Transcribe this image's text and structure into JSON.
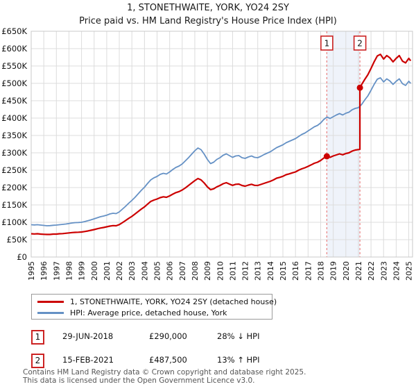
{
  "header": {
    "title": "1, STONETHWAITE, YORK, YO24 2SY",
    "subtitle": "Price paid vs. HM Land Registry's House Price Index (HPI)"
  },
  "legend": [
    {
      "label": "1, STONETHWAITE, YORK, YO24 2SY (detached house)",
      "color": "#cc0000"
    },
    {
      "label": "HPI: Average price, detached house, York",
      "color": "#6591c5"
    }
  ],
  "sales": [
    {
      "num": "1",
      "date": "29-JUN-2018",
      "price_label": "£290,000",
      "hpi_diff": "28% ↓ HPI",
      "x": 2018.49,
      "price": 290000
    },
    {
      "num": "2",
      "date": "15-FEB-2021",
      "price_label": "£487,500",
      "hpi_diff": "13% ↑ HPI",
      "x": 2021.12,
      "price": 487500
    }
  ],
  "footer": {
    "line1": "Contains HM Land Registry data © Crown copyright and database right 2025.",
    "line2": "This data is licensed under the Open Government Licence v3.0."
  },
  "chart_data": {
    "type": "line",
    "title": "1, STONETHWAITE, YORK, YO24 2SY",
    "subtitle": "Price paid vs. HM Land Registry's House Price Index (HPI)",
    "x_range": [
      1995,
      2025.3
    ],
    "y_range": [
      0,
      650000
    ],
    "x_ticks": [
      1995,
      1996,
      1997,
      1998,
      1999,
      2000,
      2001,
      2002,
      2003,
      2004,
      2005,
      2006,
      2007,
      2008,
      2009,
      2010,
      2011,
      2012,
      2013,
      2014,
      2015,
      2016,
      2017,
      2018,
      2019,
      2020,
      2021,
      2022,
      2023,
      2024,
      2025
    ],
    "y_ticks": [
      {
        "v": 0,
        "label": "£0"
      },
      {
        "v": 50000,
        "label": "£50K"
      },
      {
        "v": 100000,
        "label": "£100K"
      },
      {
        "v": 150000,
        "label": "£150K"
      },
      {
        "v": 200000,
        "label": "£200K"
      },
      {
        "v": 250000,
        "label": "£250K"
      },
      {
        "v": 300000,
        "label": "£300K"
      },
      {
        "v": 350000,
        "label": "£350K"
      },
      {
        "v": 400000,
        "label": "£400K"
      },
      {
        "v": 450000,
        "label": "£450K"
      },
      {
        "v": 500000,
        "label": "£500K"
      },
      {
        "v": 550000,
        "label": "£550K"
      },
      {
        "v": 600000,
        "label": "£600K"
      },
      {
        "v": 650000,
        "label": "£650K"
      }
    ],
    "grid": true,
    "legend_position": "bottom",
    "shaded_span": [
      2018.49,
      2021.12
    ],
    "colors": {
      "red": "#cc0000",
      "blue": "#6591c5",
      "grid": "#dcdcdc",
      "border": "#c8c8c8",
      "band": "#dbe5f4",
      "dash": "#e98080",
      "marker_border": "#cc2222",
      "tick_text": "#111111"
    },
    "series": [
      {
        "name": "1, STONETHWAITE, YORK, YO24 2SY (detached house)",
        "color": "#cc0000",
        "width": 2.2,
        "points": [
          [
            1995,
            67000
          ],
          [
            1995.25,
            66500
          ],
          [
            1995.5,
            67000
          ],
          [
            1995.75,
            66000
          ],
          [
            1996,
            65500
          ],
          [
            1996.25,
            65000
          ],
          [
            1996.5,
            65000
          ],
          [
            1996.75,
            66000
          ],
          [
            1997,
            66000
          ],
          [
            1997.25,
            67000
          ],
          [
            1997.5,
            67500
          ],
          [
            1997.75,
            68500
          ],
          [
            1998,
            69500
          ],
          [
            1998.25,
            70500
          ],
          [
            1998.5,
            71000
          ],
          [
            1998.75,
            71500
          ],
          [
            1999,
            72000
          ],
          [
            1999.25,
            73500
          ],
          [
            1999.5,
            75000
          ],
          [
            1999.75,
            77000
          ],
          [
            2000,
            79000
          ],
          [
            2000.25,
            81500
          ],
          [
            2000.5,
            83500
          ],
          [
            2000.75,
            85000
          ],
          [
            2001,
            87000
          ],
          [
            2001.25,
            89000
          ],
          [
            2001.5,
            90500
          ],
          [
            2001.75,
            90000
          ],
          [
            2002,
            93500
          ],
          [
            2002.25,
            99000
          ],
          [
            2002.5,
            105000
          ],
          [
            2002.75,
            111500
          ],
          [
            2003,
            117000
          ],
          [
            2003.25,
            124000
          ],
          [
            2003.5,
            131000
          ],
          [
            2003.75,
            138000
          ],
          [
            2004,
            144500
          ],
          [
            2004.25,
            152500
          ],
          [
            2004.5,
            160000
          ],
          [
            2004.75,
            164000
          ],
          [
            2005,
            167000
          ],
          [
            2005.25,
            171000
          ],
          [
            2005.5,
            173500
          ],
          [
            2005.75,
            172000
          ],
          [
            2006,
            176000
          ],
          [
            2006.25,
            181000
          ],
          [
            2006.5,
            185500
          ],
          [
            2006.75,
            188500
          ],
          [
            2007,
            193000
          ],
          [
            2007.25,
            199000
          ],
          [
            2007.5,
            206000
          ],
          [
            2007.75,
            213000
          ],
          [
            2008,
            220000
          ],
          [
            2008.25,
            226000
          ],
          [
            2008.5,
            222000
          ],
          [
            2008.75,
            213000
          ],
          [
            2009,
            202000
          ],
          [
            2009.25,
            194000
          ],
          [
            2009.5,
            196500
          ],
          [
            2009.75,
            202000
          ],
          [
            2010,
            206000
          ],
          [
            2010.25,
            211000
          ],
          [
            2010.5,
            214000
          ],
          [
            2010.75,
            210000
          ],
          [
            2011,
            206500
          ],
          [
            2011.25,
            209500
          ],
          [
            2011.5,
            210000
          ],
          [
            2011.75,
            206000
          ],
          [
            2012,
            204000
          ],
          [
            2012.25,
            207000
          ],
          [
            2012.5,
            209500
          ],
          [
            2012.75,
            206500
          ],
          [
            2013,
            206000
          ],
          [
            2013.25,
            209000
          ],
          [
            2013.5,
            212000
          ],
          [
            2013.75,
            215000
          ],
          [
            2014,
            218000
          ],
          [
            2014.25,
            222000
          ],
          [
            2014.5,
            227000
          ],
          [
            2014.75,
            229500
          ],
          [
            2015,
            232500
          ],
          [
            2015.25,
            237000
          ],
          [
            2015.5,
            239500
          ],
          [
            2015.75,
            242500
          ],
          [
            2016,
            245000
          ],
          [
            2016.25,
            250000
          ],
          [
            2016.5,
            254000
          ],
          [
            2016.75,
            257000
          ],
          [
            2017,
            261000
          ],
          [
            2017.25,
            265500
          ],
          [
            2017.5,
            270000
          ],
          [
            2017.75,
            273000
          ],
          [
            2018,
            278000
          ],
          [
            2018.25,
            285000
          ],
          [
            2018.49,
            290000
          ],
          [
            2018.75,
            287000
          ],
          [
            2019,
            291000
          ],
          [
            2019.25,
            294000
          ],
          [
            2019.5,
            297000
          ],
          [
            2019.75,
            294500
          ],
          [
            2020,
            298000
          ],
          [
            2020.25,
            300000
          ],
          [
            2020.5,
            305000
          ],
          [
            2020.75,
            308000
          ],
          [
            2021,
            309500
          ],
          [
            2021.12,
            310000
          ],
          [
            2021.12,
            487500
          ],
          [
            2021.25,
            496500
          ],
          [
            2021.5,
            511000
          ],
          [
            2021.75,
            525000
          ],
          [
            2022,
            543000
          ],
          [
            2022.25,
            562000
          ],
          [
            2022.5,
            579000
          ],
          [
            2022.75,
            583500
          ],
          [
            2023,
            570000
          ],
          [
            2023.25,
            580000
          ],
          [
            2023.5,
            573500
          ],
          [
            2023.75,
            562000
          ],
          [
            2024,
            572000
          ],
          [
            2024.25,
            580000
          ],
          [
            2024.5,
            564000
          ],
          [
            2024.75,
            559000
          ],
          [
            2025,
            572000
          ],
          [
            2025.15,
            565000
          ]
        ]
      },
      {
        "name": "HPI: Average price, detached house, York",
        "color": "#6591c5",
        "width": 1.8,
        "points": [
          [
            1995,
            93000
          ],
          [
            1995.25,
            92500
          ],
          [
            1995.5,
            93000
          ],
          [
            1995.75,
            92000
          ],
          [
            1996,
            91000
          ],
          [
            1996.25,
            90000
          ],
          [
            1996.5,
            90500
          ],
          [
            1996.75,
            91500
          ],
          [
            1997,
            92000
          ],
          [
            1997.25,
            93000
          ],
          [
            1997.5,
            94000
          ],
          [
            1997.75,
            95000
          ],
          [
            1998,
            96500
          ],
          [
            1998.25,
            98000
          ],
          [
            1998.5,
            99000
          ],
          [
            1998.75,
            99500
          ],
          [
            1999,
            100000
          ],
          [
            1999.25,
            102000
          ],
          [
            1999.5,
            104500
          ],
          [
            1999.75,
            107000
          ],
          [
            2000,
            110000
          ],
          [
            2000.25,
            113000
          ],
          [
            2000.5,
            116000
          ],
          [
            2000.75,
            118000
          ],
          [
            2001,
            120500
          ],
          [
            2001.25,
            124000
          ],
          [
            2001.5,
            126000
          ],
          [
            2001.75,
            125000
          ],
          [
            2002,
            130000
          ],
          [
            2002.25,
            138000
          ],
          [
            2002.5,
            146000
          ],
          [
            2002.75,
            155000
          ],
          [
            2003,
            163000
          ],
          [
            2003.25,
            172000
          ],
          [
            2003.5,
            182000
          ],
          [
            2003.75,
            192000
          ],
          [
            2004,
            201000
          ],
          [
            2004.25,
            212000
          ],
          [
            2004.5,
            222000
          ],
          [
            2004.75,
            228000
          ],
          [
            2005,
            232000
          ],
          [
            2005.25,
            238000
          ],
          [
            2005.5,
            241000
          ],
          [
            2005.75,
            239000
          ],
          [
            2006,
            245000
          ],
          [
            2006.25,
            252000
          ],
          [
            2006.5,
            258000
          ],
          [
            2006.75,
            262000
          ],
          [
            2007,
            268000
          ],
          [
            2007.25,
            277000
          ],
          [
            2007.5,
            286000
          ],
          [
            2007.75,
            296000
          ],
          [
            2008,
            306000
          ],
          [
            2008.25,
            314000
          ],
          [
            2008.5,
            309000
          ],
          [
            2008.75,
            296000
          ],
          [
            2009,
            281000
          ],
          [
            2009.25,
            269000
          ],
          [
            2009.5,
            273000
          ],
          [
            2009.75,
            281000
          ],
          [
            2010,
            286000
          ],
          [
            2010.25,
            293000
          ],
          [
            2010.5,
            297000
          ],
          [
            2010.75,
            292000
          ],
          [
            2011,
            287000
          ],
          [
            2011.25,
            291000
          ],
          [
            2011.5,
            292000
          ],
          [
            2011.75,
            286000
          ],
          [
            2012,
            284000
          ],
          [
            2012.25,
            288000
          ],
          [
            2012.5,
            291000
          ],
          [
            2012.75,
            287000
          ],
          [
            2013,
            286000
          ],
          [
            2013.25,
            290000
          ],
          [
            2013.5,
            295000
          ],
          [
            2013.75,
            299000
          ],
          [
            2014,
            303000
          ],
          [
            2014.25,
            309000
          ],
          [
            2014.5,
            315000
          ],
          [
            2014.75,
            319000
          ],
          [
            2015,
            323000
          ],
          [
            2015.25,
            329000
          ],
          [
            2015.5,
            333000
          ],
          [
            2015.75,
            337000
          ],
          [
            2016,
            341000
          ],
          [
            2016.25,
            347000
          ],
          [
            2016.5,
            353000
          ],
          [
            2016.75,
            357000
          ],
          [
            2017,
            363000
          ],
          [
            2017.25,
            369000
          ],
          [
            2017.5,
            375000
          ],
          [
            2017.75,
            379000
          ],
          [
            2018,
            386000
          ],
          [
            2018.25,
            396000
          ],
          [
            2018.5,
            403000
          ],
          [
            2018.75,
            399000
          ],
          [
            2019,
            404000
          ],
          [
            2019.25,
            409000
          ],
          [
            2019.5,
            413000
          ],
          [
            2019.75,
            409000
          ],
          [
            2020,
            414000
          ],
          [
            2020.25,
            417000
          ],
          [
            2020.5,
            424000
          ],
          [
            2020.75,
            428000
          ],
          [
            2021,
            430000
          ],
          [
            2021.25,
            439000
          ],
          [
            2021.5,
            452000
          ],
          [
            2021.75,
            464000
          ],
          [
            2022,
            480000
          ],
          [
            2022.25,
            497000
          ],
          [
            2022.5,
            512000
          ],
          [
            2022.75,
            516000
          ],
          [
            2023,
            504000
          ],
          [
            2023.25,
            513000
          ],
          [
            2023.5,
            507000
          ],
          [
            2023.75,
            497000
          ],
          [
            2024,
            506000
          ],
          [
            2024.25,
            513000
          ],
          [
            2024.5,
            499000
          ],
          [
            2024.75,
            494000
          ],
          [
            2025,
            506000
          ],
          [
            2025.15,
            500000
          ]
        ]
      }
    ]
  }
}
